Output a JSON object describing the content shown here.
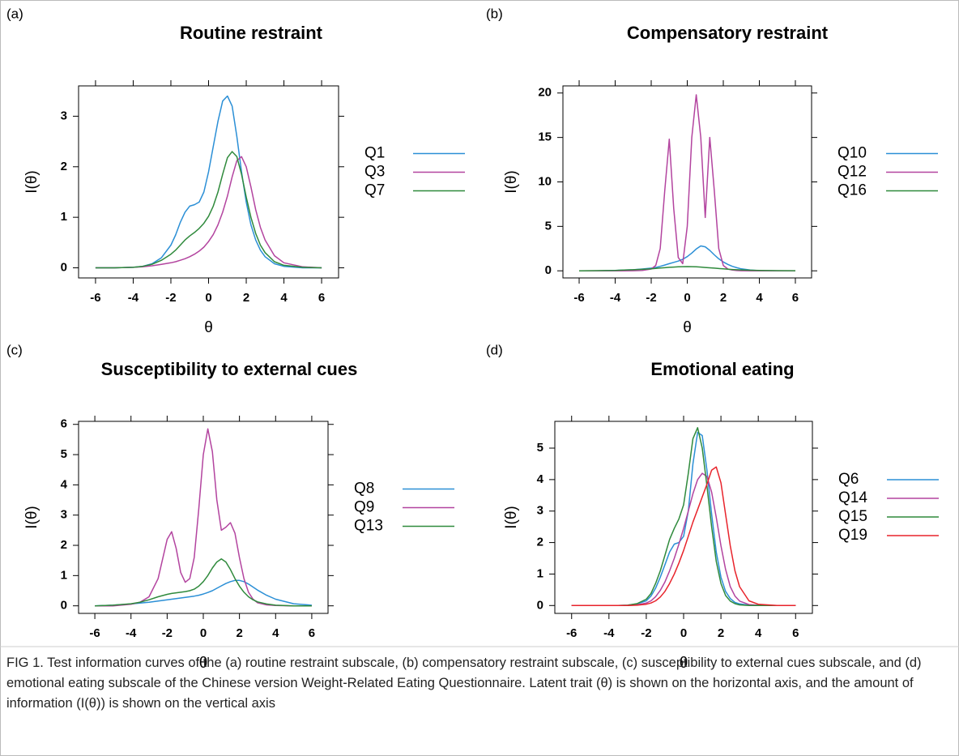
{
  "caption": "FIG 1. Test information curves of the (a) routine restraint subscale, (b) compensatory restraint subscale, (c) susceptibility to external cues subscale, and (d) emotional eating subscale of the Chinese version Weight-Related Eating Questionnaire. Latent trait (θ) is shown on the horizontal axis, and the amount of information (I(θ)) is shown on the vertical axis",
  "chart_data": [
    {
      "type": "line",
      "panel_label": "(a)",
      "title": "Routine restraint",
      "xlabel": "θ",
      "ylabel": "I(θ)",
      "x": [
        -6,
        -5,
        -4,
        -3.5,
        -3,
        -2.5,
        -2,
        -1.75,
        -1.5,
        -1.25,
        -1,
        -0.75,
        -0.5,
        -0.25,
        0,
        0.25,
        0.5,
        0.75,
        1,
        1.25,
        1.5,
        1.75,
        2,
        2.25,
        2.5,
        2.75,
        3,
        3.5,
        4,
        5,
        6
      ],
      "xlim": [
        -6.9,
        6.9
      ],
      "xticks": [
        -6,
        -4,
        -2,
        0,
        2,
        4,
        6
      ],
      "ylim": [
        -0.2,
        3.6
      ],
      "yticks": [
        0,
        1,
        2,
        3
      ],
      "series": [
        {
          "name": "Q1",
          "color": "#2b8fd6",
          "values": [
            0,
            0,
            0.01,
            0.03,
            0.08,
            0.2,
            0.45,
            0.65,
            0.9,
            1.1,
            1.22,
            1.25,
            1.3,
            1.5,
            1.9,
            2.4,
            2.9,
            3.3,
            3.4,
            3.2,
            2.6,
            1.9,
            1.3,
            0.85,
            0.55,
            0.35,
            0.22,
            0.08,
            0.03,
            0,
            0
          ]
        },
        {
          "name": "Q3",
          "color": "#b3449f",
          "values": [
            0,
            0,
            0.01,
            0.02,
            0.04,
            0.07,
            0.1,
            0.12,
            0.15,
            0.18,
            0.22,
            0.27,
            0.33,
            0.41,
            0.52,
            0.66,
            0.85,
            1.1,
            1.42,
            1.8,
            2.12,
            2.2,
            2.0,
            1.6,
            1.15,
            0.8,
            0.55,
            0.24,
            0.1,
            0.02,
            0
          ]
        },
        {
          "name": "Q7",
          "color": "#2f8a3c",
          "values": [
            0,
            0,
            0.01,
            0.03,
            0.07,
            0.15,
            0.27,
            0.35,
            0.45,
            0.55,
            0.63,
            0.7,
            0.78,
            0.88,
            1.02,
            1.22,
            1.5,
            1.85,
            2.18,
            2.3,
            2.2,
            1.85,
            1.4,
            1.0,
            0.68,
            0.45,
            0.3,
            0.12,
            0.05,
            0.01,
            0
          ]
        }
      ]
    },
    {
      "type": "line",
      "panel_label": "(b)",
      "title": "Compensatory restraint",
      "xlabel": "θ",
      "ylabel": "I(θ)",
      "x": [
        -6,
        -5,
        -4,
        -3.5,
        -3,
        -2.5,
        -2,
        -1.75,
        -1.5,
        -1.25,
        -1,
        -0.75,
        -0.5,
        -0.25,
        0,
        0.25,
        0.5,
        0.75,
        1,
        1.25,
        1.5,
        1.75,
        2,
        2.25,
        2.5,
        2.75,
        3,
        3.5,
        4,
        5,
        6
      ],
      "xlim": [
        -6.9,
        6.9
      ],
      "xticks": [
        -6,
        -4,
        -2,
        0,
        2,
        4,
        6
      ],
      "ylim": [
        -0.8,
        20.8
      ],
      "yticks": [
        0,
        5,
        10,
        15,
        20
      ],
      "series": [
        {
          "name": "Q10",
          "color": "#2b8fd6",
          "values": [
            0,
            0,
            0.05,
            0.08,
            0.12,
            0.2,
            0.3,
            0.38,
            0.5,
            0.65,
            0.8,
            0.95,
            1.1,
            1.3,
            1.6,
            2.0,
            2.45,
            2.8,
            2.7,
            2.3,
            1.8,
            1.35,
            1.0,
            0.72,
            0.5,
            0.35,
            0.22,
            0.08,
            0.02,
            0,
            0
          ]
        },
        {
          "name": "Q12",
          "color": "#b3449f",
          "values": [
            0,
            0,
            0,
            0,
            0.01,
            0.05,
            0.2,
            0.6,
            2.5,
            9,
            14.8,
            7,
            1.5,
            0.8,
            5,
            15,
            19.8,
            15,
            6,
            15,
            9,
            2.5,
            0.6,
            0.2,
            0.08,
            0.03,
            0.01,
            0,
            0,
            0,
            0
          ]
        },
        {
          "name": "Q16",
          "color": "#2f8a3c",
          "values": [
            0,
            0.02,
            0.05,
            0.08,
            0.12,
            0.17,
            0.23,
            0.27,
            0.31,
            0.35,
            0.39,
            0.42,
            0.45,
            0.47,
            0.48,
            0.47,
            0.45,
            0.42,
            0.38,
            0.34,
            0.3,
            0.26,
            0.22,
            0.18,
            0.15,
            0.12,
            0.1,
            0.07,
            0.04,
            0.02,
            0.01
          ]
        }
      ]
    },
    {
      "type": "line",
      "panel_label": "(c)",
      "title": "Susceptibility to external cues",
      "xlabel": "θ",
      "ylabel": "I(θ)",
      "x": [
        -6,
        -5,
        -4,
        -3.5,
        -3,
        -2.5,
        -2,
        -1.75,
        -1.5,
        -1.25,
        -1,
        -0.75,
        -0.5,
        -0.25,
        0,
        0.25,
        0.5,
        0.75,
        1,
        1.25,
        1.5,
        1.75,
        2,
        2.25,
        2.5,
        2.75,
        3,
        3.5,
        4,
        5,
        6
      ],
      "xlim": [
        -6.9,
        6.9
      ],
      "xticks": [
        -6,
        -4,
        -2,
        0,
        2,
        4,
        6
      ],
      "ylim": [
        -0.25,
        6.1
      ],
      "yticks": [
        0,
        1,
        2,
        3,
        4,
        5,
        6
      ],
      "series": [
        {
          "name": "Q8",
          "color": "#2b8fd6",
          "values": [
            0,
            0.02,
            0.06,
            0.09,
            0.12,
            0.16,
            0.2,
            0.22,
            0.24,
            0.26,
            0.28,
            0.3,
            0.32,
            0.35,
            0.39,
            0.44,
            0.5,
            0.58,
            0.66,
            0.74,
            0.8,
            0.84,
            0.84,
            0.8,
            0.72,
            0.62,
            0.52,
            0.35,
            0.22,
            0.07,
            0.02
          ]
        },
        {
          "name": "Q9",
          "color": "#b3449f",
          "values": [
            0,
            0,
            0.05,
            0.12,
            0.3,
            0.9,
            2.2,
            2.45,
            1.9,
            1.1,
            0.78,
            0.9,
            1.6,
            3.2,
            5.0,
            5.85,
            5.1,
            3.5,
            2.5,
            2.6,
            2.75,
            2.4,
            1.6,
            0.9,
            0.45,
            0.22,
            0.1,
            0.03,
            0.01,
            0,
            0
          ]
        },
        {
          "name": "Q13",
          "color": "#2f8a3c",
          "values": [
            0,
            0.02,
            0.07,
            0.12,
            0.2,
            0.3,
            0.38,
            0.41,
            0.43,
            0.45,
            0.47,
            0.5,
            0.55,
            0.65,
            0.8,
            1.0,
            1.25,
            1.45,
            1.55,
            1.45,
            1.2,
            0.9,
            0.65,
            0.45,
            0.3,
            0.2,
            0.13,
            0.06,
            0.02,
            0,
            0
          ]
        }
      ]
    },
    {
      "type": "line",
      "panel_label": "(d)",
      "title": "Emotional eating",
      "xlabel": "θ",
      "ylabel": "I(θ)",
      "x": [
        -6,
        -5,
        -4,
        -3.5,
        -3,
        -2.5,
        -2,
        -1.75,
        -1.5,
        -1.25,
        -1,
        -0.75,
        -0.5,
        -0.25,
        0,
        0.25,
        0.5,
        0.75,
        1,
        1.25,
        1.5,
        1.75,
        2,
        2.25,
        2.5,
        2.75,
        3,
        3.5,
        4,
        5,
        6
      ],
      "xlim": [
        -6.9,
        6.9
      ],
      "xticks": [
        -6,
        -4,
        -2,
        0,
        2,
        4,
        6
      ],
      "ylim": [
        -0.25,
        5.85
      ],
      "yticks": [
        0,
        1,
        2,
        3,
        4,
        5
      ],
      "series": [
        {
          "name": "Q6",
          "color": "#2b8fd6",
          "values": [
            0,
            0,
            0,
            0,
            0.01,
            0.05,
            0.15,
            0.3,
            0.55,
            0.9,
            1.3,
            1.7,
            1.95,
            2.0,
            2.2,
            3.0,
            4.5,
            5.5,
            5.4,
            4.3,
            2.9,
            1.7,
            0.9,
            0.45,
            0.22,
            0.1,
            0.05,
            0.01,
            0,
            0,
            0
          ]
        },
        {
          "name": "Q14",
          "color": "#b3449f",
          "values": [
            0,
            0,
            0,
            0,
            0,
            0.02,
            0.08,
            0.15,
            0.28,
            0.48,
            0.75,
            1.1,
            1.5,
            1.95,
            2.45,
            3.0,
            3.55,
            4.0,
            4.2,
            4.1,
            3.6,
            2.8,
            1.9,
            1.15,
            0.6,
            0.3,
            0.14,
            0.03,
            0.01,
            0,
            0
          ]
        },
        {
          "name": "Q15",
          "color": "#2f8a3c",
          "values": [
            0,
            0,
            0,
            0,
            0.01,
            0.06,
            0.2,
            0.38,
            0.7,
            1.1,
            1.6,
            2.1,
            2.45,
            2.75,
            3.2,
            4.2,
            5.3,
            5.65,
            5.0,
            3.8,
            2.5,
            1.4,
            0.7,
            0.32,
            0.14,
            0.06,
            0.02,
            0,
            0,
            0,
            0
          ]
        },
        {
          "name": "Q19",
          "color": "#e8232b",
          "values": [
            0,
            0,
            0,
            0,
            0,
            0.01,
            0.04,
            0.08,
            0.15,
            0.27,
            0.45,
            0.7,
            1.0,
            1.35,
            1.75,
            2.2,
            2.65,
            3.05,
            3.45,
            3.85,
            4.3,
            4.4,
            3.9,
            2.9,
            1.9,
            1.1,
            0.6,
            0.15,
            0.04,
            0,
            0
          ]
        }
      ]
    }
  ]
}
